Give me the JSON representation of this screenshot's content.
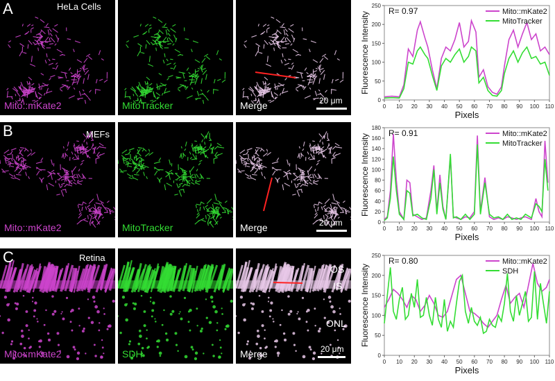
{
  "rows": [
    {
      "letter": "A",
      "title": "HeLa Cells",
      "channels": [
        "Mito::mKate2",
        "MitoTracker",
        "Merge"
      ],
      "scale": "20 μm",
      "layers": []
    },
    {
      "letter": "B",
      "title": "MEFs",
      "channels": [
        "Mito::mKate2",
        "MitoTracker",
        "Merge"
      ],
      "scale": "20 μm",
      "layers": []
    },
    {
      "letter": "C",
      "title": "Retina",
      "channels": [
        "Mito::mKate2",
        "SDH",
        "Merge"
      ],
      "scale": "20 μm",
      "layers": [
        "OS",
        "IS",
        "ONL"
      ]
    }
  ],
  "colors": {
    "magenta": "#cc44cc",
    "green": "#33dd33",
    "merge": "#e8c8e8",
    "line": "#ff2222"
  },
  "chart_data": [
    {
      "type": "line",
      "annotation": "R= 0.97",
      "xlabel": "Pixels",
      "ylabel": "Fluorescence Intensity",
      "xlim": [
        0,
        110
      ],
      "ylim": [
        0,
        250
      ],
      "xticks": [
        0,
        10,
        20,
        30,
        40,
        50,
        60,
        70,
        80,
        90,
        100,
        110
      ],
      "yticks": [
        0,
        50,
        100,
        150,
        200,
        250
      ],
      "legend": "top-right",
      "series": [
        {
          "name": "Mito::mKate2",
          "color": "#cc44cc",
          "x": [
            0,
            5,
            10,
            13,
            16,
            19,
            22,
            24,
            27,
            29,
            32,
            35,
            38,
            41,
            44,
            47,
            50,
            53,
            56,
            58,
            61,
            63,
            66,
            69,
            72,
            75,
            78,
            80,
            83,
            86,
            89,
            92,
            95,
            98,
            101,
            104,
            107,
            110
          ],
          "y": [
            8,
            10,
            8,
            40,
            135,
            115,
            185,
            207,
            165,
            140,
            80,
            30,
            110,
            140,
            130,
            160,
            205,
            140,
            155,
            210,
            180,
            60,
            80,
            35,
            20,
            15,
            35,
            90,
            160,
            185,
            140,
            175,
            205,
            160,
            175,
            130,
            140,
            120
          ]
        },
        {
          "name": "MitoTracker",
          "color": "#33dd33",
          "x": [
            0,
            5,
            10,
            13,
            16,
            19,
            22,
            24,
            27,
            29,
            32,
            35,
            38,
            41,
            44,
            47,
            50,
            53,
            56,
            58,
            61,
            63,
            66,
            69,
            72,
            75,
            78,
            80,
            83,
            86,
            89,
            92,
            95,
            98,
            101,
            104,
            107,
            110
          ],
          "y": [
            5,
            6,
            5,
            30,
            100,
            95,
            130,
            140,
            120,
            110,
            65,
            25,
            90,
            110,
            100,
            120,
            135,
            100,
            115,
            140,
            130,
            45,
            60,
            25,
            12,
            10,
            25,
            70,
            110,
            130,
            100,
            125,
            140,
            110,
            115,
            95,
            100,
            65
          ]
        }
      ]
    },
    {
      "type": "line",
      "annotation": "R= 0.91",
      "xlabel": "Pixels",
      "ylabel": "Fluorescence Intensity",
      "xlim": [
        0,
        110
      ],
      "ylim": [
        0,
        180
      ],
      "xticks": [
        0,
        10,
        20,
        30,
        40,
        50,
        60,
        70,
        80,
        90,
        100,
        110
      ],
      "yticks": [
        0,
        20,
        40,
        60,
        80,
        100,
        120,
        140,
        160,
        180
      ],
      "legend": "top-right",
      "series": [
        {
          "name": "Mito::mKate2",
          "color": "#cc44cc",
          "x": [
            0,
            2,
            4,
            6,
            8,
            10,
            13,
            15,
            17,
            19,
            22,
            25,
            28,
            31,
            33,
            35,
            37,
            39,
            41,
            44,
            46,
            48,
            51,
            54,
            57,
            60,
            62,
            64,
            67,
            70,
            73,
            76,
            79,
            82,
            85,
            88,
            91,
            94,
            98,
            101,
            103,
            105,
            107,
            109
          ],
          "y": [
            5,
            10,
            60,
            168,
            80,
            20,
            5,
            80,
            75,
            15,
            10,
            5,
            8,
            60,
            108,
            20,
            90,
            30,
            5,
            125,
            10,
            8,
            5,
            10,
            8,
            20,
            165,
            20,
            85,
            10,
            5,
            8,
            5,
            10,
            8,
            5,
            8,
            10,
            5,
            45,
            20,
            10,
            155,
            75
          ]
        },
        {
          "name": "MitoTracker",
          "color": "#33dd33",
          "x": [
            0,
            2,
            4,
            6,
            8,
            10,
            13,
            15,
            17,
            19,
            22,
            25,
            28,
            31,
            33,
            35,
            37,
            39,
            41,
            44,
            46,
            48,
            51,
            54,
            57,
            60,
            62,
            64,
            67,
            70,
            73,
            76,
            79,
            82,
            85,
            88,
            91,
            94,
            98,
            101,
            103,
            105,
            107,
            109
          ],
          "y": [
            3,
            8,
            45,
            125,
            60,
            15,
            5,
            60,
            55,
            12,
            15,
            8,
            5,
            45,
            100,
            15,
            75,
            25,
            5,
            130,
            8,
            10,
            5,
            15,
            5,
            15,
            148,
            15,
            75,
            15,
            8,
            10,
            5,
            15,
            5,
            8,
            5,
            15,
            8,
            35,
            30,
            20,
            120,
            60
          ]
        }
      ]
    },
    {
      "type": "line",
      "annotation": "R= 0.80",
      "xlabel": "Pixels",
      "ylabel": "Fluorescence Intensity",
      "xlim": [
        0,
        110
      ],
      "ylim": [
        0,
        250
      ],
      "xticks": [
        0,
        10,
        20,
        30,
        40,
        50,
        60,
        70,
        80,
        90,
        100,
        110
      ],
      "yticks": [
        0,
        50,
        100,
        150,
        200,
        250
      ],
      "legend": "top-right",
      "series": [
        {
          "name": "Mito::mKate2",
          "color": "#cc44cc",
          "x": [
            0,
            3,
            6,
            9,
            12,
            15,
            18,
            21,
            24,
            27,
            30,
            33,
            36,
            39,
            42,
            45,
            48,
            51,
            54,
            57,
            60,
            63,
            66,
            69,
            72,
            75,
            78,
            81,
            84,
            87,
            90,
            93,
            96,
            99,
            102,
            105,
            108,
            110
          ],
          "y": [
            120,
            140,
            165,
            155,
            140,
            120,
            150,
            140,
            110,
            125,
            150,
            130,
            100,
            95,
            110,
            150,
            190,
            200,
            155,
            110,
            105,
            95,
            80,
            70,
            85,
            100,
            140,
            175,
            130,
            145,
            155,
            120,
            175,
            230,
            180,
            160,
            170,
            190
          ]
        },
        {
          "name": "SDH",
          "color": "#33dd33",
          "x": [
            0,
            2,
            4,
            6,
            8,
            10,
            12,
            14,
            16,
            18,
            20,
            22,
            24,
            26,
            28,
            30,
            32,
            34,
            36,
            38,
            40,
            42,
            44,
            46,
            48,
            50,
            52,
            54,
            56,
            58,
            60,
            62,
            64,
            66,
            68,
            70,
            72,
            74,
            76,
            78,
            80,
            82,
            84,
            86,
            88,
            90,
            92,
            94,
            96,
            98,
            100,
            102,
            104,
            106,
            108,
            110
          ],
          "y": [
            80,
            150,
            220,
            110,
            90,
            140,
            170,
            90,
            100,
            155,
            120,
            190,
            95,
            100,
            145,
            100,
            75,
            145,
            90,
            70,
            140,
            60,
            85,
            70,
            130,
            185,
            200,
            110,
            80,
            120,
            85,
            75,
            95,
            55,
            60,
            90,
            75,
            70,
            100,
            85,
            130,
            205,
            110,
            85,
            150,
            100,
            130,
            160,
            85,
            95,
            210,
            90,
            180,
            130,
            80,
            160
          ]
        }
      ]
    }
  ]
}
